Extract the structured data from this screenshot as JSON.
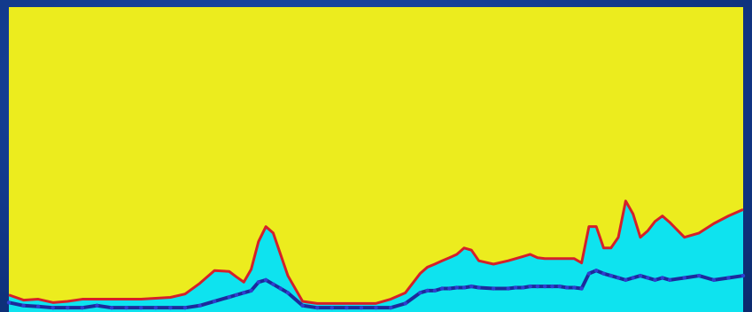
{
  "chart_data": {
    "type": "area",
    "title": "",
    "xlabel": "",
    "ylabel": "",
    "grid": false,
    "legend": "none",
    "xlim": [
      0,
      100
    ],
    "ylim": [
      0,
      100
    ],
    "colors": {
      "background_fill": "#ecec1e",
      "area_fill": "#0ee3ef",
      "upper_line": "#d4202a",
      "lower_line": "#1c2a9c",
      "frame": "#123a8c"
    },
    "x": [
      0,
      2,
      4,
      6,
      8,
      10,
      12,
      14,
      16,
      18,
      20,
      22,
      24,
      26,
      28,
      30,
      31,
      32,
      33,
      34,
      35,
      36,
      37,
      38,
      40,
      42,
      44,
      46,
      48,
      50,
      52,
      54,
      56,
      57,
      58,
      59,
      60,
      61,
      62,
      63,
      64,
      66,
      68,
      69,
      70,
      71,
      72,
      73,
      74,
      75,
      76,
      77,
      78,
      79,
      80,
      81,
      82,
      83,
      84,
      85,
      86,
      87,
      88,
      89,
      90,
      92,
      94,
      96,
      98,
      100
    ],
    "series": [
      {
        "values": [
          5.6,
          3.9,
          4.2,
          3.1,
          3.5,
          4.2,
          4.2,
          4.2,
          4.2,
          4.2,
          4.5,
          4.8,
          5.9,
          9.4,
          13.6,
          13.3,
          11.5,
          9.8,
          14.0,
          23.1,
          28.0,
          25.9,
          18.9,
          11.9,
          3.5,
          2.8,
          2.8,
          2.8,
          2.8,
          2.8,
          4.2,
          6.3,
          12.6,
          14.7,
          15.7,
          16.8,
          17.8,
          18.9,
          21.0,
          20.3,
          16.8,
          15.7,
          16.8,
          17.5,
          18.2,
          18.9,
          17.8,
          17.5,
          17.5,
          17.5,
          17.5,
          17.5,
          16.1,
          28.0,
          28.0,
          21.0,
          21.0,
          24.5,
          36.4,
          32.2,
          24.5,
          26.6,
          29.7,
          31.5,
          29.4,
          24.5,
          25.9,
          29.0,
          31.5,
          33.6
        ]
      },
      {
        "values": [
          3.1,
          2.1,
          1.8,
          1.4,
          1.4,
          1.4,
          2.1,
          1.4,
          1.4,
          1.4,
          1.4,
          1.4,
          1.4,
          2.1,
          3.5,
          4.9,
          5.6,
          6.3,
          7.0,
          9.8,
          10.5,
          9.1,
          7.7,
          6.3,
          2.1,
          1.4,
          1.4,
          1.4,
          1.4,
          1.4,
          1.4,
          2.8,
          6.3,
          7.0,
          7.0,
          7.7,
          7.7,
          8.0,
          8.0,
          8.4,
          8.0,
          7.7,
          7.7,
          8.0,
          8.0,
          8.4,
          8.4,
          8.4,
          8.4,
          8.4,
          8.0,
          8.0,
          7.7,
          12.6,
          13.6,
          12.6,
          11.9,
          11.2,
          10.5,
          11.2,
          11.9,
          11.2,
          10.5,
          11.2,
          10.5,
          11.2,
          11.9,
          10.5,
          11.2,
          11.9
        ]
      }
    ]
  }
}
